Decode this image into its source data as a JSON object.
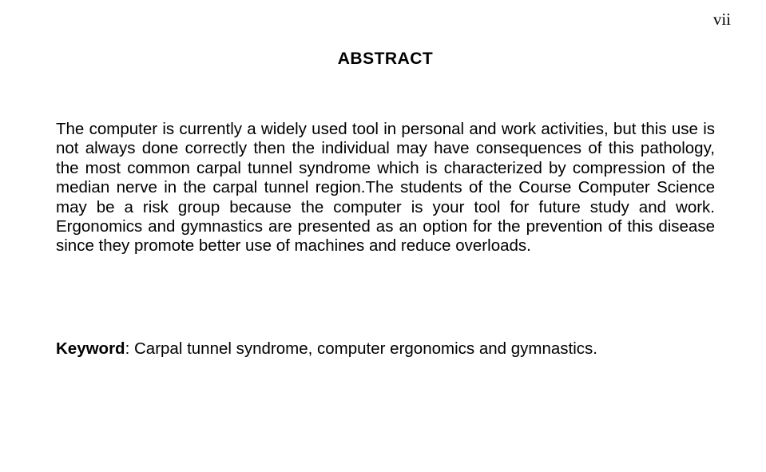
{
  "page_number": "vii",
  "heading": "ABSTRACT",
  "body": "The computer is currently a widely used tool in personal and work activities, but this use is not always done correctly then the individual may have consequences of this pathology, the most common carpal tunnel syndrome which is characterized by compression of the median nerve in the carpal tunnel region.The students of the Course Computer Science may be a risk group because the computer is your tool for future study and work. Ergonomics and gymnastics are presented as an option for the prevention of this disease since they promote better use of machines and reduce overloads.",
  "keyword_label": "Keyword",
  "keyword_separator": ": ",
  "keyword_text": "Carpal tunnel syndrome, computer ergonomics and gymnastics.",
  "colors": {
    "background": "#ffffff",
    "text": "#000000"
  },
  "typography": {
    "body_font": "Arial",
    "body_fontsize_pt": 15,
    "page_number_font": "Times New Roman",
    "page_number_fontsize_pt": 16,
    "heading_weight": "bold"
  }
}
